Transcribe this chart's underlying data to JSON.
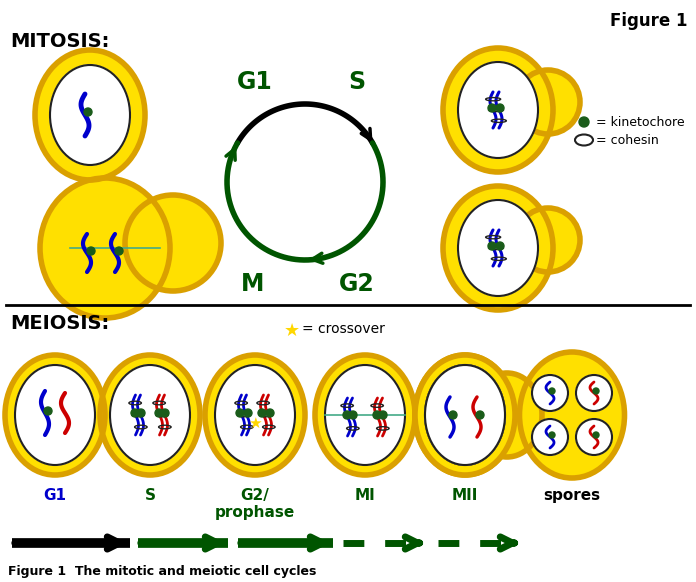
{
  "title": "Figure 1",
  "subtitle": "Figure 1  The mitotic and meiotic cell cycles",
  "mitosis_label": "MITOSIS:",
  "meiosis_label": "MEIOSIS:",
  "crossover_label": "= crossover",
  "cohesin_label": "= cohesin",
  "kinetochore_label": "= kinetochore",
  "yellow": "#FFE000",
  "dark_yellow": "#DAA000",
  "blue_chr": "#0000CC",
  "red_chr": "#CC0000",
  "dark_green": "#005500",
  "black": "#000000",
  "white": "#ffffff",
  "bg": "#ffffff",
  "green_label": "#005500",
  "blue_label": "#0000CC",
  "kinet_color": "#1a5c1a",
  "fig_w": 6.96,
  "fig_h": 5.82,
  "dpi": 100
}
